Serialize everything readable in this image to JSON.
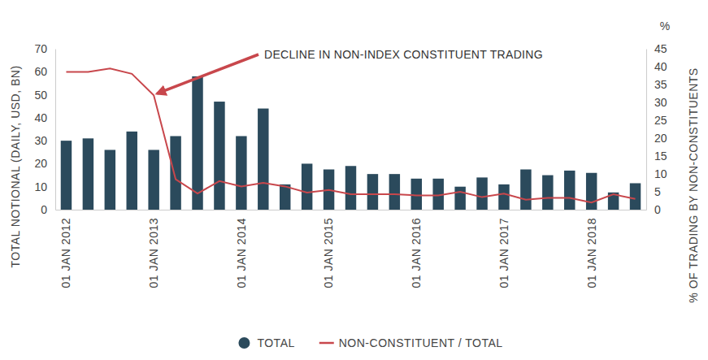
{
  "chart_data": {
    "type": "bar",
    "categories": [
      "01 JAN 2012",
      null,
      null,
      null,
      "01 JAN 2013",
      null,
      null,
      null,
      "01 JAN 2014",
      null,
      null,
      null,
      "01 JAN 2015",
      null,
      null,
      null,
      "01 JAN 2016",
      null,
      null,
      null,
      "01 JAN 2017",
      null,
      null,
      null,
      "01 JAN 2018",
      null,
      null
    ],
    "series": [
      {
        "name": "TOTAL",
        "type": "bar",
        "color": "#2b4a5c",
        "values": [
          30,
          31,
          26,
          34,
          26,
          32,
          58,
          47,
          32,
          44,
          11,
          20,
          17.5,
          19,
          15.5,
          15.5,
          13.5,
          13.5,
          10,
          14,
          11,
          17.5,
          15,
          17,
          16,
          7.5,
          11.5
        ]
      },
      {
        "name": "NON-CONSTITUENT / TOTAL",
        "type": "line",
        "color": "#c8474c",
        "axis": "y2",
        "values": [
          38.5,
          38.5,
          39.5,
          38,
          32,
          8.5,
          4.5,
          8,
          6.5,
          7.5,
          6.5,
          4.8,
          5.5,
          4.3,
          4.3,
          4.3,
          4,
          4,
          5,
          3.5,
          4.5,
          2.8,
          3.3,
          3.3,
          2,
          4.3,
          3
        ]
      }
    ],
    "ylabel": "TOTAL NOTIONAL (DAILY, USD, BN)",
    "y2label": "% OF TRADING BY NON-CONSTITUENTS",
    "y2_unit": "%",
    "annotation": "DECLINE IN NON-INDEX CONSTITUENT TRADING",
    "ylim": [
      0,
      70
    ],
    "yticks": [
      0,
      10,
      20,
      30,
      40,
      50,
      60,
      70
    ],
    "y2lim": [
      0,
      45
    ],
    "y2ticks": [
      0,
      5,
      10,
      15,
      20,
      25,
      30,
      35,
      40,
      45
    ],
    "legend": "bottom",
    "grid": false
  }
}
